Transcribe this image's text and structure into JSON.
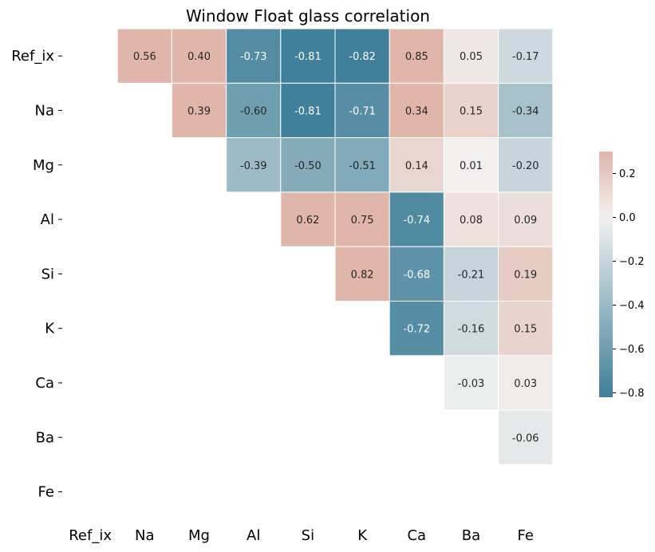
{
  "chart_data": {
    "type": "heatmap",
    "title": "Window Float glass correlation",
    "xlabels": [
      "Ref_ix",
      "Na",
      "Mg",
      "Al",
      "Si",
      "K",
      "Ca",
      "Ba",
      "Fe"
    ],
    "ylabels": [
      "Ref_ix",
      "Na",
      "Mg",
      "Al",
      "Si",
      "K",
      "Ca",
      "Ba",
      "Fe"
    ],
    "mask": "lower triangle and diagonal",
    "values": [
      [
        null,
        0.56,
        0.4,
        -0.73,
        -0.81,
        -0.82,
        0.85,
        0.05,
        -0.17
      ],
      [
        null,
        null,
        0.39,
        -0.6,
        -0.81,
        -0.71,
        0.34,
        0.15,
        -0.34
      ],
      [
        null,
        null,
        null,
        -0.39,
        -0.5,
        -0.51,
        0.14,
        0.01,
        -0.2
      ],
      [
        null,
        null,
        null,
        null,
        0.62,
        0.75,
        -0.74,
        0.08,
        0.09
      ],
      [
        null,
        null,
        null,
        null,
        null,
        0.82,
        -0.68,
        -0.21,
        0.19
      ],
      [
        null,
        null,
        null,
        null,
        null,
        null,
        -0.72,
        -0.16,
        0.15
      ],
      [
        null,
        null,
        null,
        null,
        null,
        null,
        null,
        -0.03,
        0.03
      ],
      [
        null,
        null,
        null,
        null,
        null,
        null,
        null,
        null,
        -0.06
      ],
      [
        null,
        null,
        null,
        null,
        null,
        null,
        null,
        null,
        null
      ]
    ],
    "value_format": "0.00",
    "colormap": {
      "low": "#3f7f99",
      "mid": "#f2f1f0",
      "high": "#dfb6a9"
    },
    "vmin": -0.82,
    "vmax": 0.3,
    "colorbar": {
      "ticks": [
        0.2,
        0.0,
        -0.2,
        -0.4,
        -0.6,
        -0.8
      ],
      "tick_labels": [
        "0.2",
        "0.0",
        "−0.2",
        "−0.4",
        "−0.6",
        "−0.8"
      ]
    },
    "grid": false,
    "legend": "colorbar right"
  }
}
